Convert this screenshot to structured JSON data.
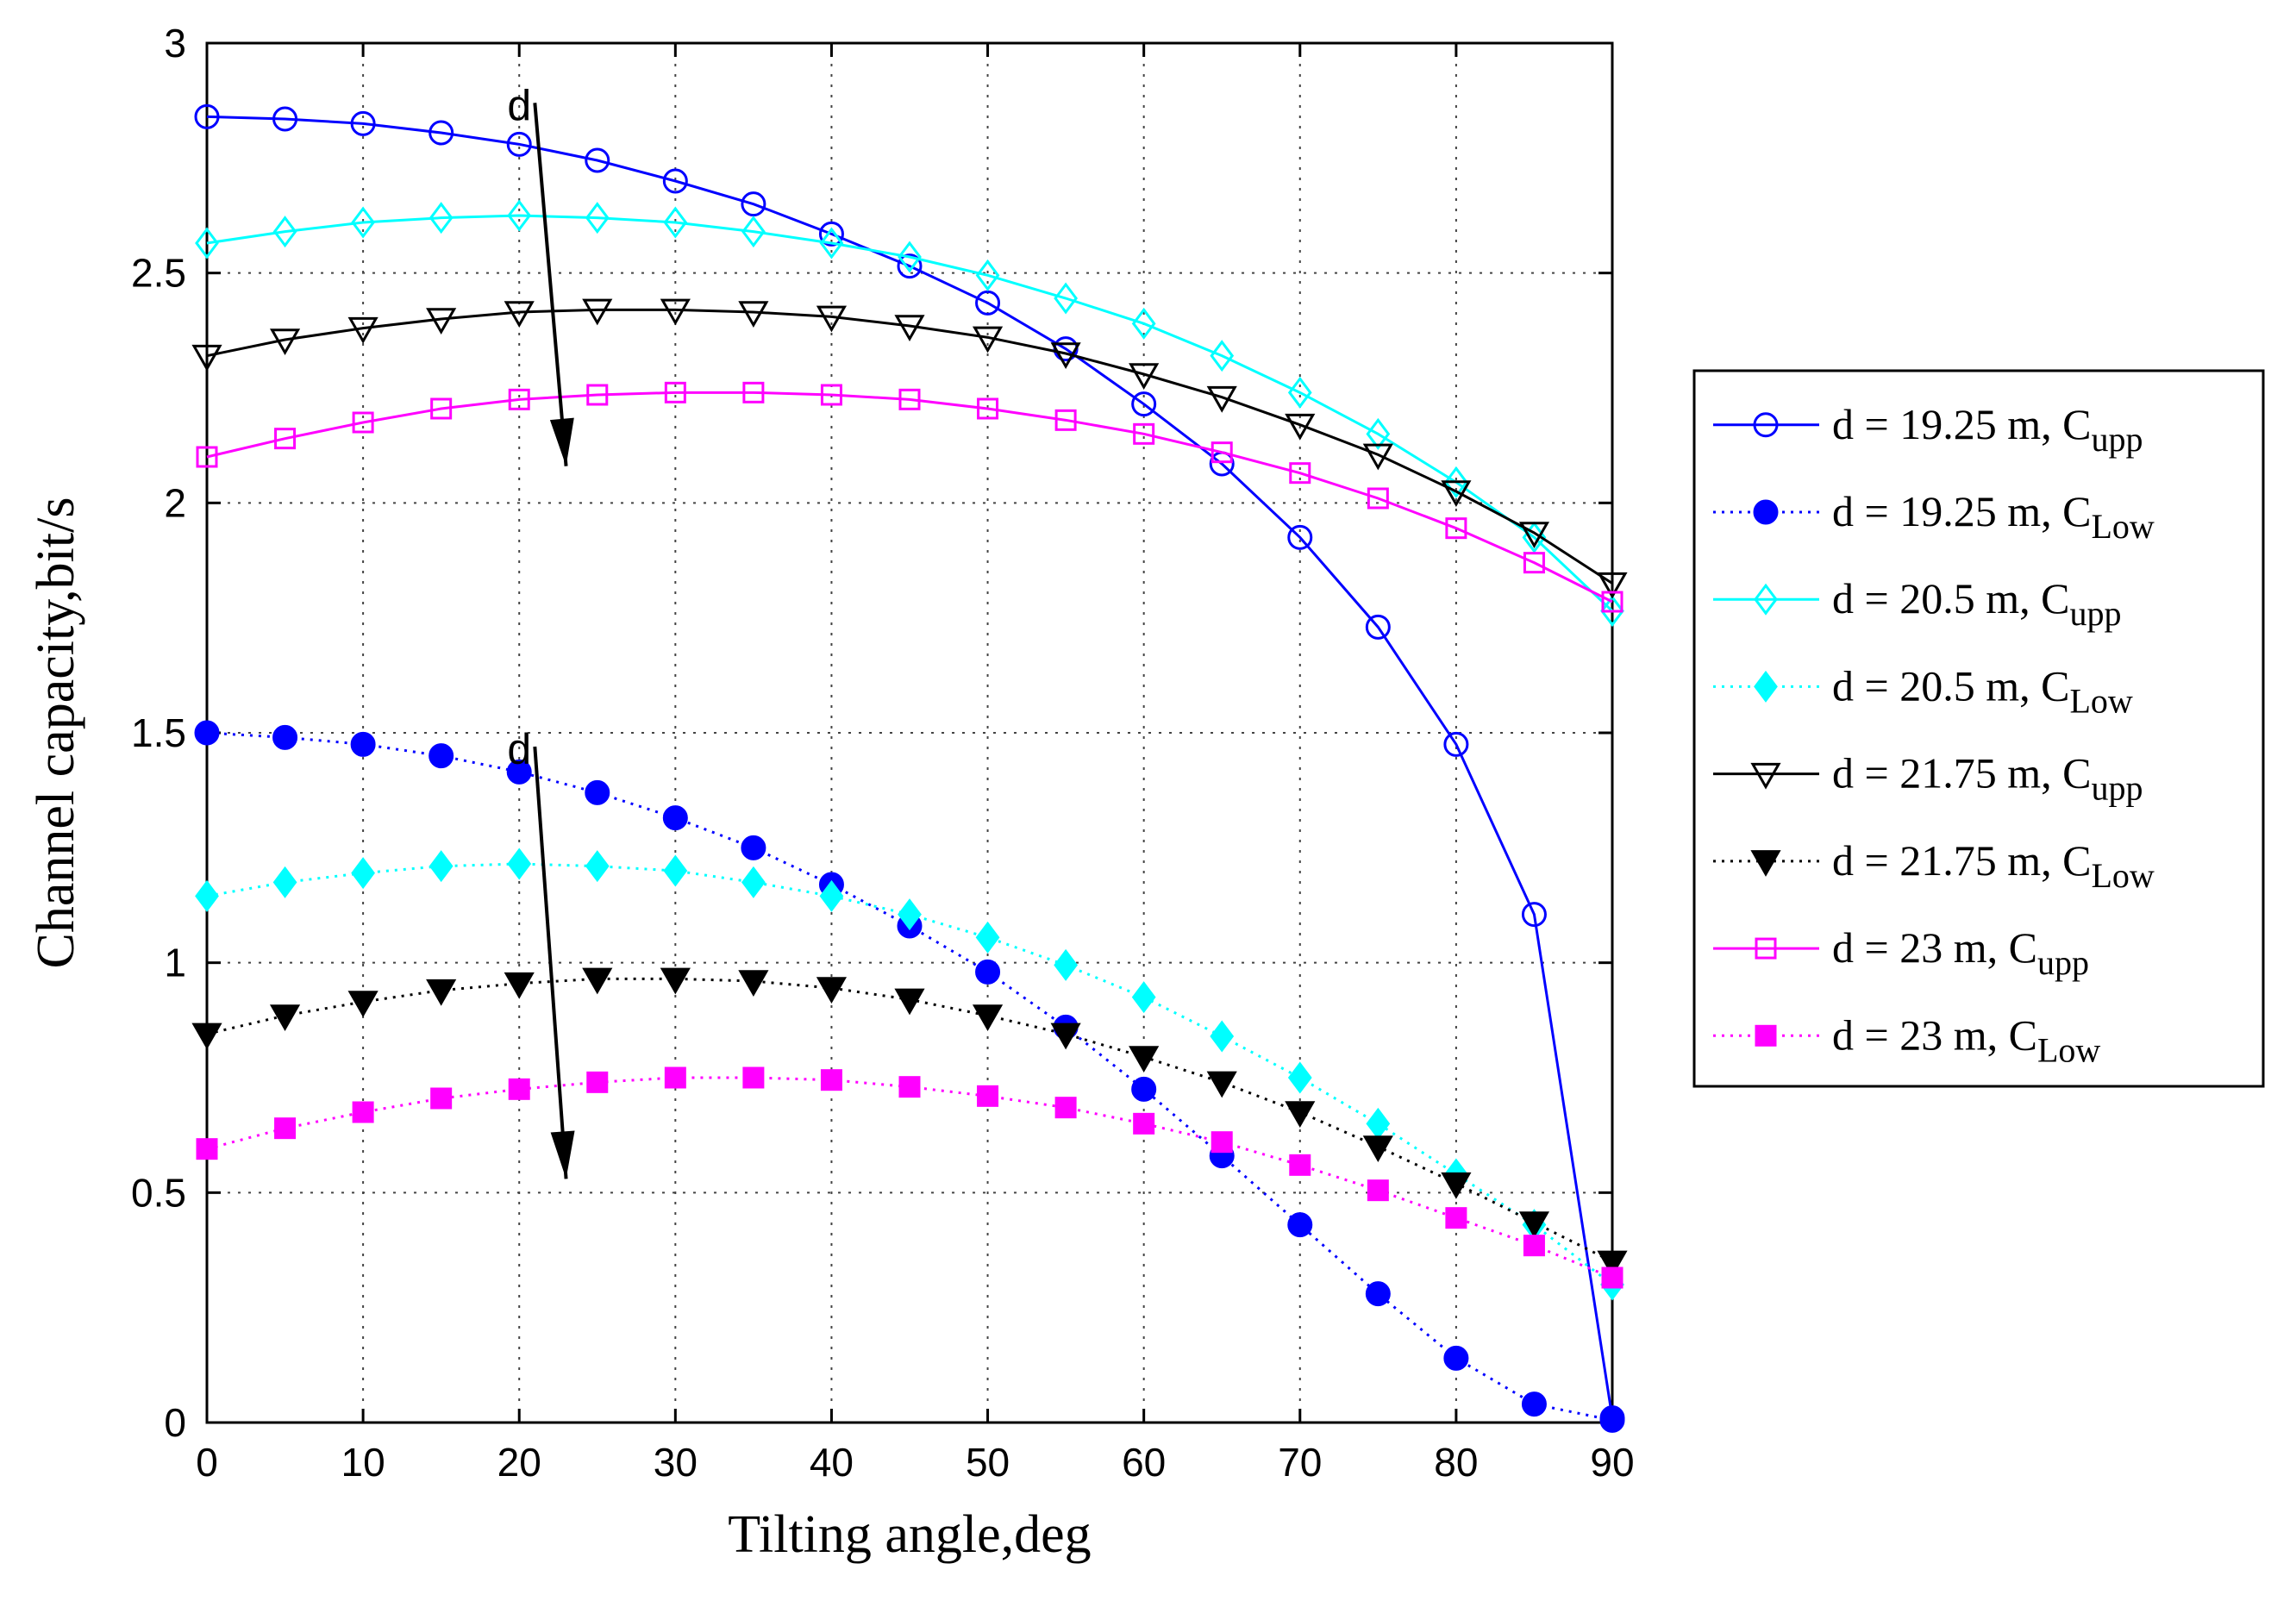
{
  "chart_data": {
    "type": "line",
    "title": "",
    "xlabel": "Tilting angle,deg",
    "ylabel": "Channel capacity,bit/s",
    "xlim": [
      0,
      90
    ],
    "ylim": [
      0,
      3
    ],
    "grid": true,
    "legend_position": "right-outside",
    "x_ticks": [
      0,
      10,
      20,
      30,
      40,
      50,
      60,
      70,
      80,
      90
    ],
    "y_ticks": [
      0,
      0.5,
      1,
      1.5,
      2,
      2.5,
      3
    ],
    "x_tick_labels": [
      "0",
      "10",
      "20",
      "30",
      "40",
      "50",
      "60",
      "70",
      "80",
      "90"
    ],
    "y_tick_labels": [
      "0",
      "0.5",
      "1",
      "1.5",
      "2",
      "2.5",
      "3"
    ],
    "x": [
      0,
      5,
      10,
      15,
      20,
      25,
      30,
      35,
      40,
      45,
      50,
      55,
      60,
      65,
      70,
      75,
      80,
      85,
      90
    ],
    "series": [
      {
        "name": "d = 19.25 m, C_upp",
        "legend_main": "d = 19.25 m, C",
        "legend_sub": "upp",
        "color": "#0000ff",
        "line_style": "solid",
        "marker": "circle-open",
        "values": [
          2.84,
          2.835,
          2.825,
          2.805,
          2.78,
          2.745,
          2.7,
          2.65,
          2.585,
          2.515,
          2.435,
          2.335,
          2.215,
          2.085,
          1.925,
          1.73,
          1.475,
          1.105,
          0.01
        ]
      },
      {
        "name": "d = 19.25 m, C_Low",
        "legend_main": "d = 19.25 m, C",
        "legend_sub": "Low",
        "color": "#0000ff",
        "line_style": "dotted",
        "marker": "circle-filled",
        "values": [
          1.5,
          1.49,
          1.475,
          1.45,
          1.415,
          1.37,
          1.315,
          1.25,
          1.17,
          1.08,
          0.98,
          0.86,
          0.725,
          0.58,
          0.43,
          0.28,
          0.14,
          0.04,
          0.005
        ]
      },
      {
        "name": "d = 20.5 m, C_upp",
        "legend_main": "d = 20.5 m, C",
        "legend_sub": "upp",
        "color": "#00ffff",
        "line_style": "solid",
        "marker": "diamond-open",
        "values": [
          2.565,
          2.59,
          2.61,
          2.62,
          2.625,
          2.62,
          2.61,
          2.59,
          2.565,
          2.535,
          2.495,
          2.445,
          2.39,
          2.32,
          2.24,
          2.15,
          2.045,
          1.925,
          1.765
        ]
      },
      {
        "name": "d = 20.5 m, C_Low",
        "legend_main": "d = 20.5 m, C",
        "legend_sub": "Low",
        "color": "#00ffff",
        "line_style": "dotted",
        "marker": "diamond-filled",
        "values": [
          1.145,
          1.175,
          1.195,
          1.21,
          1.215,
          1.21,
          1.2,
          1.175,
          1.145,
          1.105,
          1.055,
          0.995,
          0.925,
          0.84,
          0.75,
          0.65,
          0.54,
          0.43,
          0.3
        ]
      },
      {
        "name": "d = 21.75 m, C_upp",
        "legend_main": "d = 21.75 m, C",
        "legend_sub": "upp",
        "color": "#000000",
        "line_style": "solid",
        "marker": "triangle-down-open",
        "values": [
          2.32,
          2.355,
          2.38,
          2.4,
          2.415,
          2.42,
          2.42,
          2.415,
          2.405,
          2.385,
          2.36,
          2.325,
          2.28,
          2.23,
          2.17,
          2.105,
          2.025,
          1.935,
          1.825
        ]
      },
      {
        "name": "d = 21.75 m, C_Low",
        "legend_main": "d = 21.75 m, C",
        "legend_sub": "Low",
        "color": "#000000",
        "line_style": "dotted",
        "marker": "triangle-down-filled",
        "values": [
          0.845,
          0.885,
          0.915,
          0.94,
          0.955,
          0.965,
          0.965,
          0.96,
          0.945,
          0.92,
          0.885,
          0.845,
          0.795,
          0.74,
          0.675,
          0.6,
          0.52,
          0.435,
          0.35
        ]
      },
      {
        "name": "d = 23 m, C_upp",
        "legend_main": "d = 23 m, C",
        "legend_sub": "upp",
        "color": "#ff00ff",
        "line_style": "solid",
        "marker": "square-open",
        "values": [
          2.1,
          2.14,
          2.175,
          2.205,
          2.225,
          2.235,
          2.24,
          2.24,
          2.235,
          2.225,
          2.205,
          2.18,
          2.15,
          2.11,
          2.065,
          2.01,
          1.945,
          1.87,
          1.785
        ]
      },
      {
        "name": "d = 23 m, C_Low",
        "legend_main": "d = 23 m, C",
        "legend_sub": "Low",
        "color": "#ff00ff",
        "line_style": "dotted",
        "marker": "square-filled",
        "values": [
          0.595,
          0.64,
          0.675,
          0.705,
          0.725,
          0.74,
          0.75,
          0.75,
          0.745,
          0.73,
          0.71,
          0.685,
          0.65,
          0.61,
          0.56,
          0.505,
          0.445,
          0.385,
          0.315
        ]
      }
    ],
    "annotations": [
      {
        "text": "d",
        "arrow_from": [
          21,
          2.87
        ],
        "arrow_to": [
          23,
          2.08
        ]
      },
      {
        "text": "d",
        "arrow_from": [
          21,
          1.47
        ],
        "arrow_to": [
          23,
          0.53
        ]
      }
    ]
  }
}
